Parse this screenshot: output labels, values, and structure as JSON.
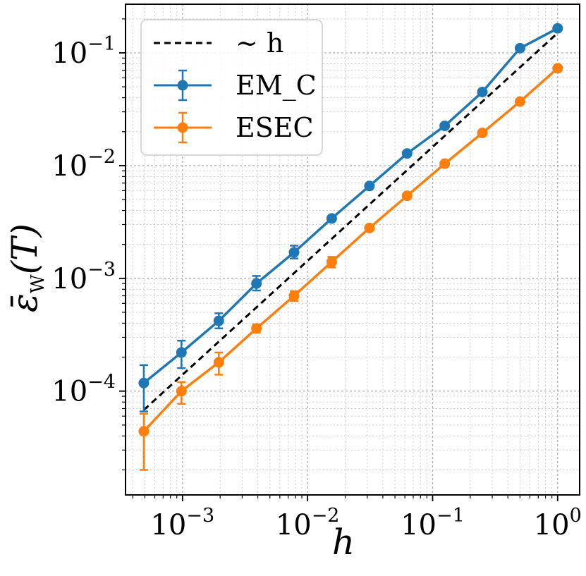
{
  "chart_data": {
    "type": "line",
    "xscale": "log",
    "yscale": "log",
    "xlim": [
      0.00035,
      1.5
    ],
    "ylim": [
      1.2e-05,
      0.27
    ],
    "grid": true,
    "legend_position": "top-left",
    "xlabel": "h",
    "ylabel": "ε̄_W(T)",
    "x_ticks": [
      {
        "value": 0.001,
        "base": "10",
        "exp": "−3"
      },
      {
        "value": 0.01,
        "base": "10",
        "exp": "−2"
      },
      {
        "value": 0.1,
        "base": "10",
        "exp": "−1"
      },
      {
        "value": 1,
        "base": "10",
        "exp": "0"
      }
    ],
    "y_ticks": [
      {
        "value": 0.0001,
        "base": "10",
        "exp": "−4"
      },
      {
        "value": 0.001,
        "base": "10",
        "exp": "−3"
      },
      {
        "value": 0.01,
        "base": "10",
        "exp": "−2"
      },
      {
        "value": 0.1,
        "base": "10",
        "exp": "−1"
      }
    ],
    "reference": {
      "name": "∼ h",
      "color": "#000000",
      "x": [
        0.00049,
        1.0
      ],
      "y": [
        6.8e-05,
        0.15
      ]
    },
    "series": [
      {
        "name": "EM_C",
        "color": "#1f77b4",
        "x": [
          0.00049,
          0.00098,
          0.00195,
          0.0039,
          0.0078,
          0.0156,
          0.03125,
          0.0625,
          0.125,
          0.25,
          0.5,
          1.0
        ],
        "y": [
          0.000118,
          0.00022,
          0.00042,
          0.0009,
          0.0017,
          0.0034,
          0.0066,
          0.0128,
          0.0225,
          0.045,
          0.11,
          0.165
        ],
        "err_low": [
          6.6e-05,
          0.00016,
          0.00036,
          0.00078,
          0.0015,
          0.0034,
          0.0066,
          0.0128,
          0.0225,
          0.045,
          0.11,
          0.165
        ],
        "err_high": [
          0.00017,
          0.00028,
          0.00049,
          0.00105,
          0.00195,
          0.0034,
          0.0066,
          0.0128,
          0.0225,
          0.045,
          0.11,
          0.165
        ]
      },
      {
        "name": "ESEC",
        "color": "#ff7f0e",
        "x": [
          0.00049,
          0.00098,
          0.00195,
          0.0039,
          0.0078,
          0.0156,
          0.03125,
          0.0625,
          0.125,
          0.25,
          0.5,
          1.0
        ],
        "y": [
          4.4e-05,
          0.0001,
          0.00018,
          0.00036,
          0.0007,
          0.0014,
          0.0028,
          0.0054,
          0.0104,
          0.0195,
          0.037,
          0.073
        ],
        "err_low": [
          2e-05,
          7.7e-05,
          0.00014,
          0.00033,
          0.00063,
          0.00125,
          0.0028,
          0.0054,
          0.0104,
          0.0195,
          0.037,
          0.073
        ],
        "err_high": [
          6.3e-05,
          0.00012,
          0.00022,
          0.00039,
          0.00077,
          0.00155,
          0.0028,
          0.0054,
          0.0104,
          0.0195,
          0.037,
          0.073
        ]
      }
    ]
  }
}
